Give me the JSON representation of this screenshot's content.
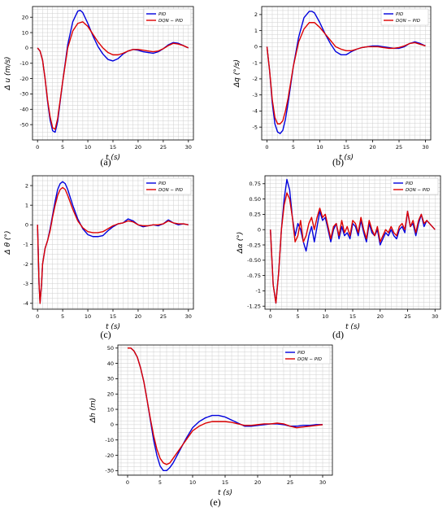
{
  "colors": {
    "pid": "#0000dd",
    "dqn": "#dd0000",
    "grid": "#cfcfcf",
    "axis": "#000000"
  },
  "chart_data": [
    {
      "type": "line",
      "caption": "(a)",
      "xlabel": "t (s)",
      "ylabel": "Δ u (m/s)",
      "xlim": [
        -1,
        31
      ],
      "ylim": [
        -60,
        27
      ],
      "xticks": [
        0,
        5,
        10,
        15,
        20,
        25,
        30
      ],
      "yticks": [
        -50,
        -40,
        -30,
        -20,
        -10,
        0,
        10,
        20
      ],
      "legend": "top-right",
      "grid": true,
      "series": [
        {
          "name": "PID",
          "x": [
            0,
            0.5,
            1,
            1.5,
            2,
            2.5,
            3,
            3.5,
            4,
            5,
            6,
            7,
            8,
            8.5,
            9,
            10,
            11,
            12,
            13,
            14,
            15,
            16,
            17,
            18,
            19,
            20,
            21,
            22,
            23,
            24,
            25,
            26,
            27,
            28,
            29,
            30
          ],
          "y": [
            0,
            -2,
            -8,
            -20,
            -35,
            -47,
            -54,
            -55,
            -48,
            -22,
            2,
            17,
            24,
            24.5,
            23,
            16,
            8,
            1,
            -4,
            -7.5,
            -8.5,
            -7,
            -4,
            -2,
            -1,
            -1.5,
            -2.5,
            -3,
            -3.5,
            -2.5,
            -0.5,
            2,
            3.5,
            3,
            1.5,
            0
          ]
        },
        {
          "name": "DQN − PID",
          "x": [
            0,
            0.5,
            1,
            1.5,
            2,
            2.5,
            3,
            3.5,
            4,
            5,
            6,
            7,
            8,
            9,
            10,
            11,
            12,
            13,
            14,
            15,
            16,
            17,
            18,
            19,
            20,
            21,
            22,
            23,
            24,
            25,
            26,
            27,
            28,
            29,
            30
          ],
          "y": [
            0,
            -2,
            -8,
            -20,
            -34,
            -45,
            -52,
            -53,
            -46,
            -22,
            0,
            11,
            16,
            17,
            14,
            9,
            4,
            0,
            -3,
            -4.5,
            -4.5,
            -3.5,
            -2,
            -1,
            -1,
            -1.5,
            -2,
            -2.5,
            -2,
            -0.5,
            1.5,
            3,
            2.5,
            1.5,
            0
          ]
        }
      ]
    },
    {
      "type": "line",
      "caption": "(b)",
      "xlabel": "t (s)",
      "ylabel": "Δq (°/s)",
      "xlim": [
        -1,
        31
      ],
      "ylim": [
        -5.8,
        2.5
      ],
      "xticks": [
        0,
        5,
        10,
        15,
        20,
        25,
        30
      ],
      "yticks": [
        -5,
        -4,
        -3,
        -2,
        -1,
        0,
        1,
        2
      ],
      "legend": "top-right",
      "grid": true,
      "series": [
        {
          "name": "PID",
          "x": [
            0,
            0.5,
            1,
            1.5,
            2,
            2.5,
            3,
            3.5,
            4,
            5,
            6,
            7,
            8,
            8.5,
            9,
            10,
            11,
            12,
            13,
            14,
            15,
            16,
            17,
            18,
            19,
            20,
            21,
            22,
            23,
            24,
            25,
            26,
            27,
            28,
            29,
            30
          ],
          "y": [
            0,
            -1.5,
            -3.5,
            -4.8,
            -5.3,
            -5.4,
            -5.2,
            -4.5,
            -3.5,
            -1.2,
            0.6,
            1.8,
            2.2,
            2.2,
            2.1,
            1.5,
            0.8,
            0.2,
            -0.3,
            -0.5,
            -0.5,
            -0.3,
            -0.15,
            -0.05,
            0,
            0.05,
            0.05,
            0,
            -0.05,
            -0.1,
            -0.1,
            0,
            0.2,
            0.3,
            0.2,
            0.05
          ]
        },
        {
          "name": "DQN − PID",
          "x": [
            0,
            0.5,
            1,
            1.5,
            2,
            2.5,
            3,
            3.5,
            4,
            5,
            6,
            7,
            8,
            9,
            10,
            11,
            12,
            13,
            14,
            15,
            16,
            17,
            18,
            19,
            20,
            21,
            22,
            23,
            24,
            25,
            26,
            27,
            28,
            29,
            30
          ],
          "y": [
            0,
            -1.5,
            -3.3,
            -4.4,
            -4.8,
            -4.8,
            -4.6,
            -4,
            -3.2,
            -1.2,
            0.3,
            1.1,
            1.5,
            1.5,
            1.2,
            0.8,
            0.4,
            0,
            -0.15,
            -0.25,
            -0.25,
            -0.15,
            -0.05,
            0,
            0,
            0,
            -0.05,
            -0.1,
            -0.1,
            -0.05,
            0.05,
            0.2,
            0.25,
            0.15,
            0.05
          ]
        }
      ]
    },
    {
      "type": "line",
      "caption": "(c)",
      "xlabel": "t (s)",
      "ylabel": "Δ θ (°)",
      "xlim": [
        -1,
        31
      ],
      "ylim": [
        -4.3,
        2.5
      ],
      "xticks": [
        0,
        5,
        10,
        15,
        20,
        25,
        30
      ],
      "yticks": [
        -4,
        -3,
        -2,
        -1,
        0,
        1,
        2
      ],
      "legend": "top-right",
      "grid": true,
      "series": [
        {
          "name": "PID",
          "x": [
            0,
            0.3,
            0.5,
            0.8,
            1,
            1.5,
            2,
            2.5,
            3,
            3.5,
            4,
            4.5,
            5,
            5.5,
            6,
            7,
            8,
            9,
            10,
            11,
            12,
            13,
            14,
            15,
            16,
            17,
            18,
            19,
            20,
            21,
            22,
            23,
            24,
            25,
            26,
            27,
            28,
            29,
            30
          ],
          "y": [
            0,
            -3,
            -4,
            -3,
            -2,
            -1.2,
            -0.8,
            -0.2,
            0.5,
            1.2,
            1.8,
            2.1,
            2.2,
            2.1,
            1.8,
            1,
            0.3,
            -0.2,
            -0.5,
            -0.6,
            -0.6,
            -0.55,
            -0.3,
            -0.1,
            0.05,
            0.1,
            0.3,
            0.2,
            0,
            -0.1,
            -0.05,
            0,
            -0.05,
            0.05,
            0.25,
            0.1,
            0,
            0.05,
            0
          ]
        },
        {
          "name": "DQN − PID",
          "x": [
            0,
            0.3,
            0.5,
            0.8,
            1,
            1.5,
            2,
            2.5,
            3,
            3.5,
            4,
            4.5,
            5,
            5.5,
            6,
            7,
            8,
            9,
            10,
            11,
            12,
            13,
            14,
            15,
            16,
            17,
            18,
            19,
            20,
            21,
            22,
            23,
            24,
            25,
            26,
            27,
            28,
            29,
            30
          ],
          "y": [
            0,
            -3,
            -4,
            -3,
            -2,
            -1.2,
            -0.8,
            -0.3,
            0.4,
            1,
            1.5,
            1.8,
            1.9,
            1.8,
            1.5,
            0.8,
            0.2,
            -0.15,
            -0.35,
            -0.4,
            -0.4,
            -0.35,
            -0.2,
            -0.05,
            0.05,
            0.1,
            0.2,
            0.15,
            0,
            -0.05,
            -0.05,
            0,
            0,
            0.05,
            0.2,
            0.1,
            0.05,
            0.05,
            0
          ]
        }
      ]
    },
    {
      "type": "line",
      "caption": "(d)",
      "xlabel": "t (s)",
      "ylabel": "Δα (°)",
      "xlim": [
        -1,
        31
      ],
      "ylim": [
        -1.3,
        0.88
      ],
      "xticks": [
        0,
        5,
        10,
        15,
        20,
        25,
        30
      ],
      "yticks": [
        -1.25,
        -1.0,
        -0.75,
        -0.5,
        -0.25,
        0.0,
        0.25,
        0.5,
        0.75
      ],
      "legend": "top-right",
      "grid": true,
      "series": [
        {
          "name": "PID",
          "x": [
            0,
            0.5,
            1,
            1.5,
            2,
            2.5,
            3,
            3.5,
            4,
            4.5,
            5,
            5.5,
            6,
            6.5,
            7,
            7.5,
            8,
            8.5,
            9,
            9.5,
            10,
            10.5,
            11,
            11.5,
            12,
            12.5,
            13,
            13.5,
            14,
            14.5,
            15,
            15.5,
            16,
            16.5,
            17,
            17.5,
            18,
            18.5,
            19,
            19.5,
            20,
            20.5,
            21,
            21.5,
            22,
            22.5,
            23,
            23.5,
            24,
            24.5,
            25,
            25.5,
            26,
            26.5,
            27,
            27.5,
            28,
            28.5,
            29,
            29.5,
            30
          ],
          "y": [
            0,
            -0.9,
            -1.2,
            -0.7,
            0,
            0.5,
            0.82,
            0.65,
            0.2,
            -0.1,
            0.1,
            0,
            -0.2,
            -0.35,
            -0.1,
            0.05,
            -0.2,
            0.05,
            0.3,
            0.15,
            0.2,
            0,
            -0.2,
            0,
            0.1,
            -0.15,
            0.05,
            -0.1,
            -0.05,
            -0.15,
            0.1,
            0.05,
            -0.1,
            0.15,
            -0.05,
            -0.2,
            0.1,
            -0.05,
            -0.1,
            0,
            -0.25,
            -0.15,
            -0.05,
            -0.1,
            0,
            -0.1,
            -0.15,
            0,
            0.05,
            -0.05,
            0.3,
            0.05,
            0.1,
            -0.1,
            0.1,
            0.25,
            0.05,
            0.15,
            0.1,
            0.05,
            0
          ]
        },
        {
          "name": "DQN − PID",
          "x": [
            0,
            0.5,
            1,
            1.5,
            2,
            2.5,
            3,
            3.5,
            4,
            4.5,
            5,
            5.5,
            6,
            6.5,
            7,
            7.5,
            8,
            8.5,
            9,
            9.5,
            10,
            10.5,
            11,
            11.5,
            12,
            12.5,
            13,
            13.5,
            14,
            14.5,
            15,
            15.5,
            16,
            16.5,
            17,
            17.5,
            18,
            18.5,
            19,
            19.5,
            20,
            20.5,
            21,
            21.5,
            22,
            22.5,
            23,
            23.5,
            24,
            24.5,
            25,
            25.5,
            26,
            26.5,
            27,
            27.5,
            28,
            28.5,
            29,
            29.5,
            30
          ],
          "y": [
            0,
            -0.9,
            -1.2,
            -0.7,
            0,
            0.4,
            0.6,
            0.5,
            0.2,
            -0.2,
            -0.1,
            0.15,
            -0.2,
            -0.1,
            0.1,
            0.2,
            0,
            0.2,
            0.35,
            0.2,
            0.25,
            0.05,
            -0.15,
            0.05,
            0.1,
            -0.1,
            0.15,
            -0.05,
            0.05,
            -0.1,
            0.15,
            0.1,
            -0.05,
            0.2,
            0,
            -0.15,
            0.15,
            0,
            -0.1,
            0.05,
            -0.2,
            -0.1,
            0,
            -0.05,
            0.05,
            -0.05,
            -0.1,
            0.05,
            0.1,
            0,
            0.3,
            0.05,
            0.15,
            -0.05,
            0.15,
            0.25,
            0.1,
            0.15,
            0.1,
            0.05,
            0
          ]
        }
      ]
    },
    {
      "type": "line",
      "caption": "(e)",
      "xlabel": "t (s)",
      "ylabel": "Δh (m)",
      "xlim": [
        -1.5,
        31.5
      ],
      "ylim": [
        -33,
        52
      ],
      "xticks": [
        0,
        5,
        10,
        15,
        20,
        25,
        30
      ],
      "yticks": [
        -30,
        -20,
        -10,
        0,
        10,
        20,
        30,
        40,
        50
      ],
      "legend": "top-right",
      "grid": true,
      "series": [
        {
          "name": "PID",
          "x": [
            0,
            0.5,
            1,
            1.5,
            2,
            2.5,
            3,
            3.5,
            4,
            4.5,
            5,
            5.5,
            6,
            6.5,
            7,
            8,
            9,
            10,
            11,
            12,
            13,
            14,
            15,
            16,
            17,
            18,
            19,
            20,
            21,
            22,
            23,
            24,
            25,
            26,
            27,
            28,
            29,
            30
          ],
          "y": [
            50,
            50,
            48,
            44,
            37,
            28,
            16,
            3,
            -10,
            -20,
            -27,
            -30,
            -30,
            -28,
            -25,
            -17,
            -9,
            -2,
            2,
            4.5,
            6,
            6,
            5,
            3,
            1,
            -1,
            -1,
            -0.5,
            0,
            0.5,
            0.5,
            0,
            -1,
            -1,
            -0.5,
            -0.5,
            0,
            0
          ]
        },
        {
          "name": "DQN − PID",
          "x": [
            0,
            0.5,
            1,
            1.5,
            2,
            2.5,
            3,
            3.5,
            4,
            4.5,
            5,
            5.5,
            6,
            6.5,
            7,
            8,
            9,
            10,
            11,
            12,
            13,
            14,
            15,
            16,
            17,
            18,
            19,
            20,
            21,
            22,
            23,
            24,
            25,
            26,
            27,
            28,
            29,
            30
          ],
          "y": [
            50,
            50,
            48,
            44,
            37,
            28,
            16,
            4,
            -7,
            -16,
            -22,
            -25,
            -26,
            -25,
            -22,
            -16,
            -10,
            -4,
            -1,
            1,
            2,
            2,
            2,
            1.5,
            0.5,
            -0.5,
            -0.5,
            0,
            0.5,
            0.5,
            1,
            0.5,
            -1,
            -2,
            -1.5,
            -1,
            -0.5,
            0
          ]
        }
      ]
    }
  ]
}
